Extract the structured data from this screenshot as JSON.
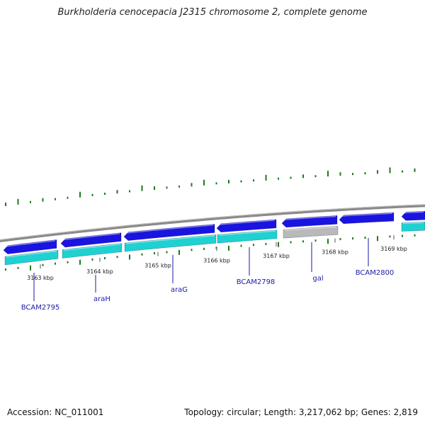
{
  "title": "Burkholderia cenocepacia J2315 chromosome 2, complete genome",
  "footer": {
    "accession_label": "Accession:",
    "accession": "NC_011001",
    "topology_label": "Topology:",
    "topology": "circular",
    "length_label": "Length:",
    "length": "3,217,062 bp",
    "genes_label": "Genes:",
    "genes": "2,819"
  },
  "colors": {
    "backbone": "#8a8a8a",
    "cds_forward": "#1a14e0",
    "cds_light": "#1fd1d1",
    "cds_unknown": "#b9b9b9",
    "gc_skew": "#1e7a1e",
    "label": "#1a1aa8"
  },
  "position_ticks": [
    {
      "label": "3163 kbp"
    },
    {
      "label": "3164 kbp"
    },
    {
      "label": "3165 kbp"
    },
    {
      "label": "3166 kbp"
    },
    {
      "label": "3167 kbp"
    },
    {
      "label": "3168 kbp"
    },
    {
      "label": "3169 kbp"
    }
  ],
  "genes": [
    {
      "label": "BCAM2795"
    },
    {
      "label": "araH"
    },
    {
      "label": "araG"
    },
    {
      "label": "BCAM2798"
    },
    {
      "label": "gal"
    },
    {
      "label": "BCAM2800"
    }
  ]
}
